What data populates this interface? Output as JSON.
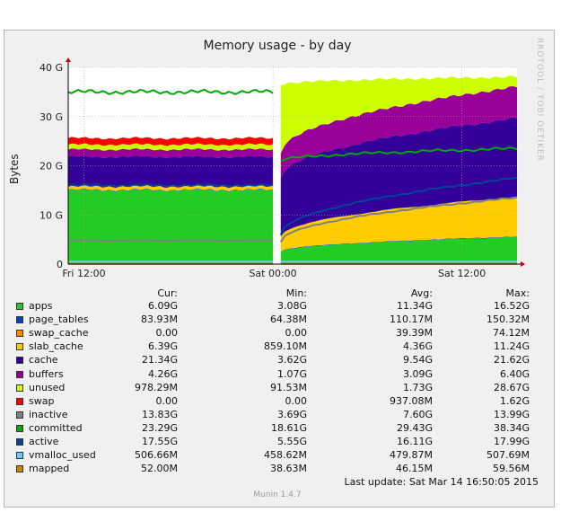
{
  "chart_data": {
    "type": "area",
    "title": "Memory usage - by day",
    "ylabel": "Bytes",
    "watermark": "RRDTOOL / TOBI OETIKER",
    "yticks": [
      "0",
      "10 G",
      "20 G",
      "30 G",
      "40 G"
    ],
    "ytick_values": [
      0,
      10,
      20,
      30,
      40
    ],
    "ylim": [
      0,
      40
    ],
    "xticks": [
      "Fri 12:00",
      "Sat 00:00",
      "Sat 12:00"
    ],
    "xtick_hours": [
      0,
      12,
      24
    ],
    "xlim_hours": [
      -1,
      27.5
    ],
    "gap_hours": [
      12.0,
      12.5
    ],
    "grid": true,
    "stacked_series": [
      {
        "name": "apps",
        "color": "#22cc22",
        "before": 15.0,
        "after_start": 2.5,
        "after_end": 5.5
      },
      {
        "name": "page_tables",
        "color": "#0044cc",
        "before": 0.1,
        "after_start": 0.1,
        "after_end": 0.1
      },
      {
        "name": "swap_cache",
        "color": "#ff8800",
        "before": 0.0,
        "after_start": 0.0,
        "after_end": 0.05
      },
      {
        "name": "slab_cache",
        "color": "#ffcc00",
        "before": 0.7,
        "after_start": 3.0,
        "after_end": 8.0
      },
      {
        "name": "cache",
        "color": "#330099",
        "before": 6.0,
        "after_start": 12.0,
        "after_end": 16.0
      },
      {
        "name": "buffers",
        "color": "#990099",
        "before": 1.5,
        "after_start": 5.0,
        "after_end": 6.4
      },
      {
        "name": "unused",
        "color": "#ccff00",
        "before": 1.0,
        "after_start": 14.0,
        "after_end": 2.0
      },
      {
        "name": "swap",
        "color": "#ff0000",
        "before": 1.3,
        "after_start": 0.0,
        "after_end": 0.0
      }
    ],
    "line_series": [
      {
        "name": "inactive",
        "color": "#808080",
        "before": 4.8,
        "after_start": 4.5,
        "after_end": 13.5
      },
      {
        "name": "committed",
        "color": "#00aa00",
        "before": 35.0,
        "after_start": 21.0,
        "after_end": 23.5
      },
      {
        "name": "active",
        "color": "#004499",
        "before": 16.0,
        "after_start": 6.0,
        "after_end": 17.5
      },
      {
        "name": "vmalloc_used",
        "color": "#66ccff",
        "before": 0.5,
        "after_start": 0.5,
        "after_end": 0.5
      },
      {
        "name": "mapped",
        "color": "#cc8800",
        "before": 0.05,
        "after_start": 0.05,
        "after_end": 0.05
      }
    ]
  },
  "legend": {
    "headers": {
      "cur": "Cur:",
      "min": "Min:",
      "avg": "Avg:",
      "max": "Max:"
    },
    "rows": [
      {
        "name": "apps",
        "color": "#22cc22",
        "cur": "6.09G",
        "min": "3.08G",
        "avg": "11.34G",
        "max": "16.52G"
      },
      {
        "name": "page_tables",
        "color": "#0044cc",
        "cur": "83.93M",
        "min": "64.38M",
        "avg": "110.17M",
        "max": "150.32M"
      },
      {
        "name": "swap_cache",
        "color": "#ff8800",
        "cur": "0.00",
        "min": "0.00",
        "avg": "39.39M",
        "max": "74.12M"
      },
      {
        "name": "slab_cache",
        "color": "#ffcc00",
        "cur": "6.39G",
        "min": "859.10M",
        "avg": "4.36G",
        "max": "11.24G"
      },
      {
        "name": "cache",
        "color": "#330099",
        "cur": "21.34G",
        "min": "3.62G",
        "avg": "9.54G",
        "max": "21.62G"
      },
      {
        "name": "buffers",
        "color": "#990099",
        "cur": "4.26G",
        "min": "1.07G",
        "avg": "3.09G",
        "max": "6.40G"
      },
      {
        "name": "unused",
        "color": "#ccff00",
        "cur": "978.29M",
        "min": "91.53M",
        "avg": "1.73G",
        "max": "28.67G"
      },
      {
        "name": "swap",
        "color": "#ff0000",
        "cur": "0.00",
        "min": "0.00",
        "avg": "937.08M",
        "max": "1.62G"
      },
      {
        "name": "inactive",
        "color": "#808080",
        "cur": "13.83G",
        "min": "3.69G",
        "avg": "7.60G",
        "max": "13.99G"
      },
      {
        "name": "committed",
        "color": "#00aa00",
        "cur": "23.29G",
        "min": "18.61G",
        "avg": "29.43G",
        "max": "38.34G"
      },
      {
        "name": "active",
        "color": "#004499",
        "cur": "17.55G",
        "min": "5.55G",
        "avg": "16.11G",
        "max": "17.99G"
      },
      {
        "name": "vmalloc_used",
        "color": "#66ccff",
        "cur": "506.66M",
        "min": "458.62M",
        "avg": "479.87M",
        "max": "507.69M"
      },
      {
        "name": "mapped",
        "color": "#cc8800",
        "cur": "52.00M",
        "min": "38.63M",
        "avg": "46.15M",
        "max": "59.56M"
      }
    ]
  },
  "last_update": "Last update: Sat Mar 14 16:50:05 2015",
  "footer": "Munin 1.4.7"
}
